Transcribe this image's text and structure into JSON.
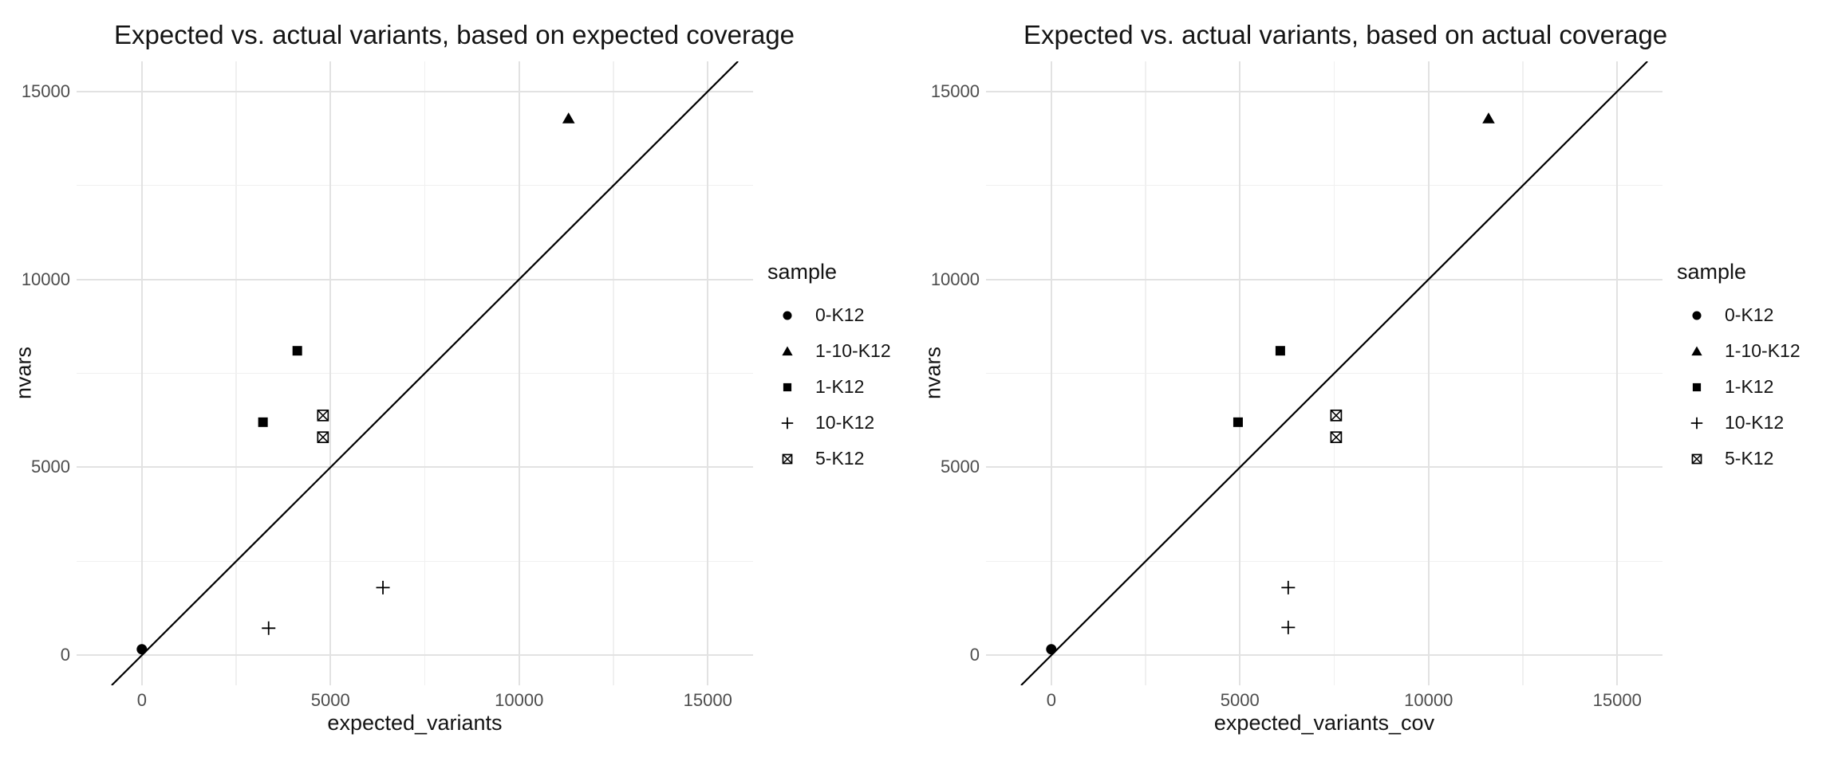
{
  "figure": {
    "background": "#ffffff",
    "text_color": "#141414",
    "tick_label_color": "#4d4d4d",
    "grid_major_color": "#e2e2e2",
    "grid_minor_color": "#f0f0f0",
    "point_color": "#000000",
    "abline_color": "#000000"
  },
  "legend": {
    "title": "sample",
    "items": [
      {
        "label": "0-K12",
        "shape": "circle"
      },
      {
        "label": "1-10-K12",
        "shape": "triangle"
      },
      {
        "label": "1-K12",
        "shape": "square"
      },
      {
        "label": "10-K12",
        "shape": "plus"
      },
      {
        "label": "5-K12",
        "shape": "square-cross"
      }
    ]
  },
  "chart_data": [
    {
      "type": "scatter",
      "title": "Expected vs. actual variants, based on expected coverage",
      "xlabel": "expected_variants",
      "ylabel": "nvars",
      "xlim": [
        -1730,
        16200
      ],
      "ylim": [
        -800,
        15800
      ],
      "xticks": [
        0,
        5000,
        10000,
        15000
      ],
      "yticks": [
        0,
        5000,
        10000,
        15000
      ],
      "minor_xticks": [
        2500,
        7500,
        12500
      ],
      "minor_yticks": [
        2500,
        7500,
        12500
      ],
      "grid": true,
      "legend_position": "right",
      "abline": {
        "slope": 1,
        "intercept": 0
      },
      "series": [
        {
          "name": "0-K12",
          "shape": "circle",
          "points": [
            [
              0,
              160
            ]
          ]
        },
        {
          "name": "1-10-K12",
          "shape": "triangle",
          "points": [
            [
              11310,
              14280
            ]
          ]
        },
        {
          "name": "1-K12",
          "shape": "square",
          "points": [
            [
              4120,
              8100
            ],
            [
              3210,
              6200
            ]
          ]
        },
        {
          "name": "10-K12",
          "shape": "plus",
          "points": [
            [
              3360,
              720
            ],
            [
              6390,
              1800
            ]
          ]
        },
        {
          "name": "5-K12",
          "shape": "square-cross",
          "points": [
            [
              4800,
              6380
            ],
            [
              4800,
              5800
            ]
          ]
        }
      ]
    },
    {
      "type": "scatter",
      "title": "Expected vs. actual variants, based on actual coverage",
      "xlabel": "expected_variants_cov",
      "ylabel": "nvars",
      "xlim": [
        -1730,
        16200
      ],
      "ylim": [
        -800,
        15800
      ],
      "xticks": [
        0,
        5000,
        10000,
        15000
      ],
      "yticks": [
        0,
        5000,
        10000,
        15000
      ],
      "minor_xticks": [
        2500,
        7500,
        12500
      ],
      "minor_yticks": [
        2500,
        7500,
        12500
      ],
      "grid": true,
      "legend_position": "right",
      "abline": {
        "slope": 1,
        "intercept": 0
      },
      "series": [
        {
          "name": "0-K12",
          "shape": "circle",
          "points": [
            [
              0,
              160
            ]
          ]
        },
        {
          "name": "1-10-K12",
          "shape": "triangle",
          "points": [
            [
              11590,
              14280
            ]
          ]
        },
        {
          "name": "1-K12",
          "shape": "square",
          "points": [
            [
              6070,
              8100
            ],
            [
              4950,
              6200
            ]
          ]
        },
        {
          "name": "10-K12",
          "shape": "plus",
          "points": [
            [
              6280,
              740
            ],
            [
              6280,
              1800
            ]
          ]
        },
        {
          "name": "5-K12",
          "shape": "square-cross",
          "points": [
            [
              7550,
              6380
            ],
            [
              7550,
              5800
            ]
          ]
        }
      ]
    }
  ]
}
